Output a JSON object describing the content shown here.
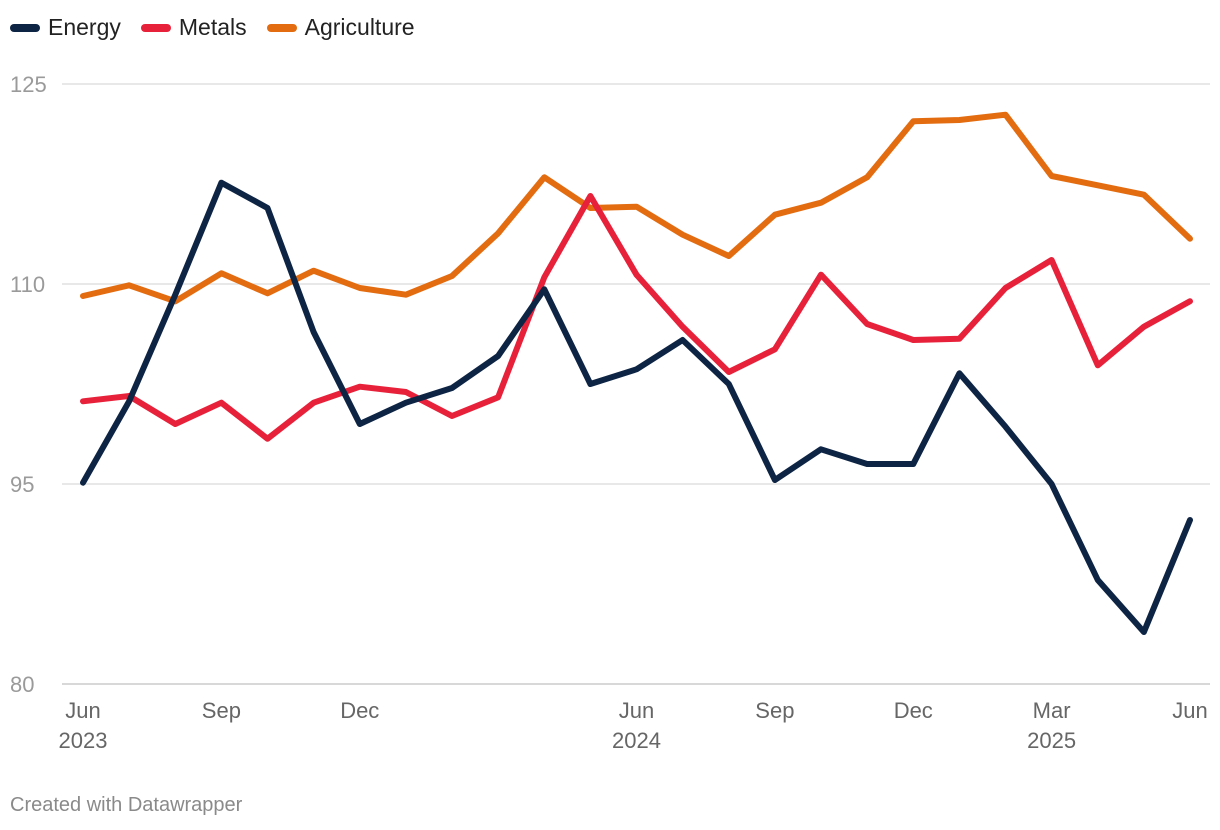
{
  "chart_data": {
    "type": "line",
    "title": "",
    "xlabel": "",
    "ylabel": "",
    "ylim": [
      80,
      125
    ],
    "yticks": [
      80,
      95,
      110,
      125
    ],
    "x_tick_labels": [
      {
        "index": 0,
        "month": "Jun",
        "year": "2023"
      },
      {
        "index": 3,
        "month": "Sep",
        "year": ""
      },
      {
        "index": 6,
        "month": "Dec",
        "year": ""
      },
      {
        "index": 12,
        "month": "Jun",
        "year": "2024"
      },
      {
        "index": 15,
        "month": "Sep",
        "year": ""
      },
      {
        "index": 18,
        "month": "Dec",
        "year": ""
      },
      {
        "index": 21,
        "month": "Mar",
        "year": "2025"
      },
      {
        "index": 24,
        "month": "Jun",
        "year": ""
      }
    ],
    "x": [
      "Jun 2023",
      "Jul 2023",
      "Aug 2023",
      "Sep 2023",
      "Oct 2023",
      "Nov 2023",
      "Dec 2023",
      "Jan 2024",
      "Feb 2024",
      "Mar 2024",
      "Apr 2024",
      "May 2024",
      "Jun 2024",
      "Jul 2024",
      "Aug 2024",
      "Sep 2024",
      "Oct 2024",
      "Nov 2024",
      "Dec 2024",
      "Jan 2025",
      "Feb 2025",
      "Mar 2025",
      "Apr 2025",
      "May 2025",
      "Jun 2025"
    ],
    "series": [
      {
        "name": "Energy",
        "color": "#0d2444",
        "values": [
          95.1,
          101.2,
          109.2,
          117.6,
          115.7,
          106.4,
          99.5,
          101.1,
          102.2,
          104.6,
          109.6,
          102.5,
          103.6,
          105.8,
          102.5,
          95.3,
          97.6,
          96.5,
          96.5,
          103.3,
          99.3,
          95.0,
          87.8,
          83.9,
          92.3
        ]
      },
      {
        "name": "Metals",
        "color": "#e8213a",
        "values": [
          101.2,
          101.6,
          99.5,
          101.1,
          98.4,
          101.1,
          102.3,
          101.9,
          100.1,
          101.5,
          110.5,
          116.6,
          110.7,
          106.8,
          103.4,
          105.1,
          110.7,
          107.0,
          105.8,
          105.9,
          109.7,
          111.8,
          103.9,
          106.8,
          108.7
        ]
      },
      {
        "name": "Agriculture",
        "color": "#e36c10",
        "values": [
          109.1,
          109.9,
          108.7,
          110.8,
          109.3,
          111.0,
          109.7,
          109.2,
          110.6,
          113.8,
          118.0,
          115.7,
          115.8,
          113.7,
          112.1,
          115.2,
          116.1,
          118.0,
          122.2,
          122.3,
          122.7,
          118.1,
          117.4,
          116.7,
          113.4
        ]
      }
    ]
  },
  "footer": {
    "credit": "Created with Datawrapper"
  }
}
